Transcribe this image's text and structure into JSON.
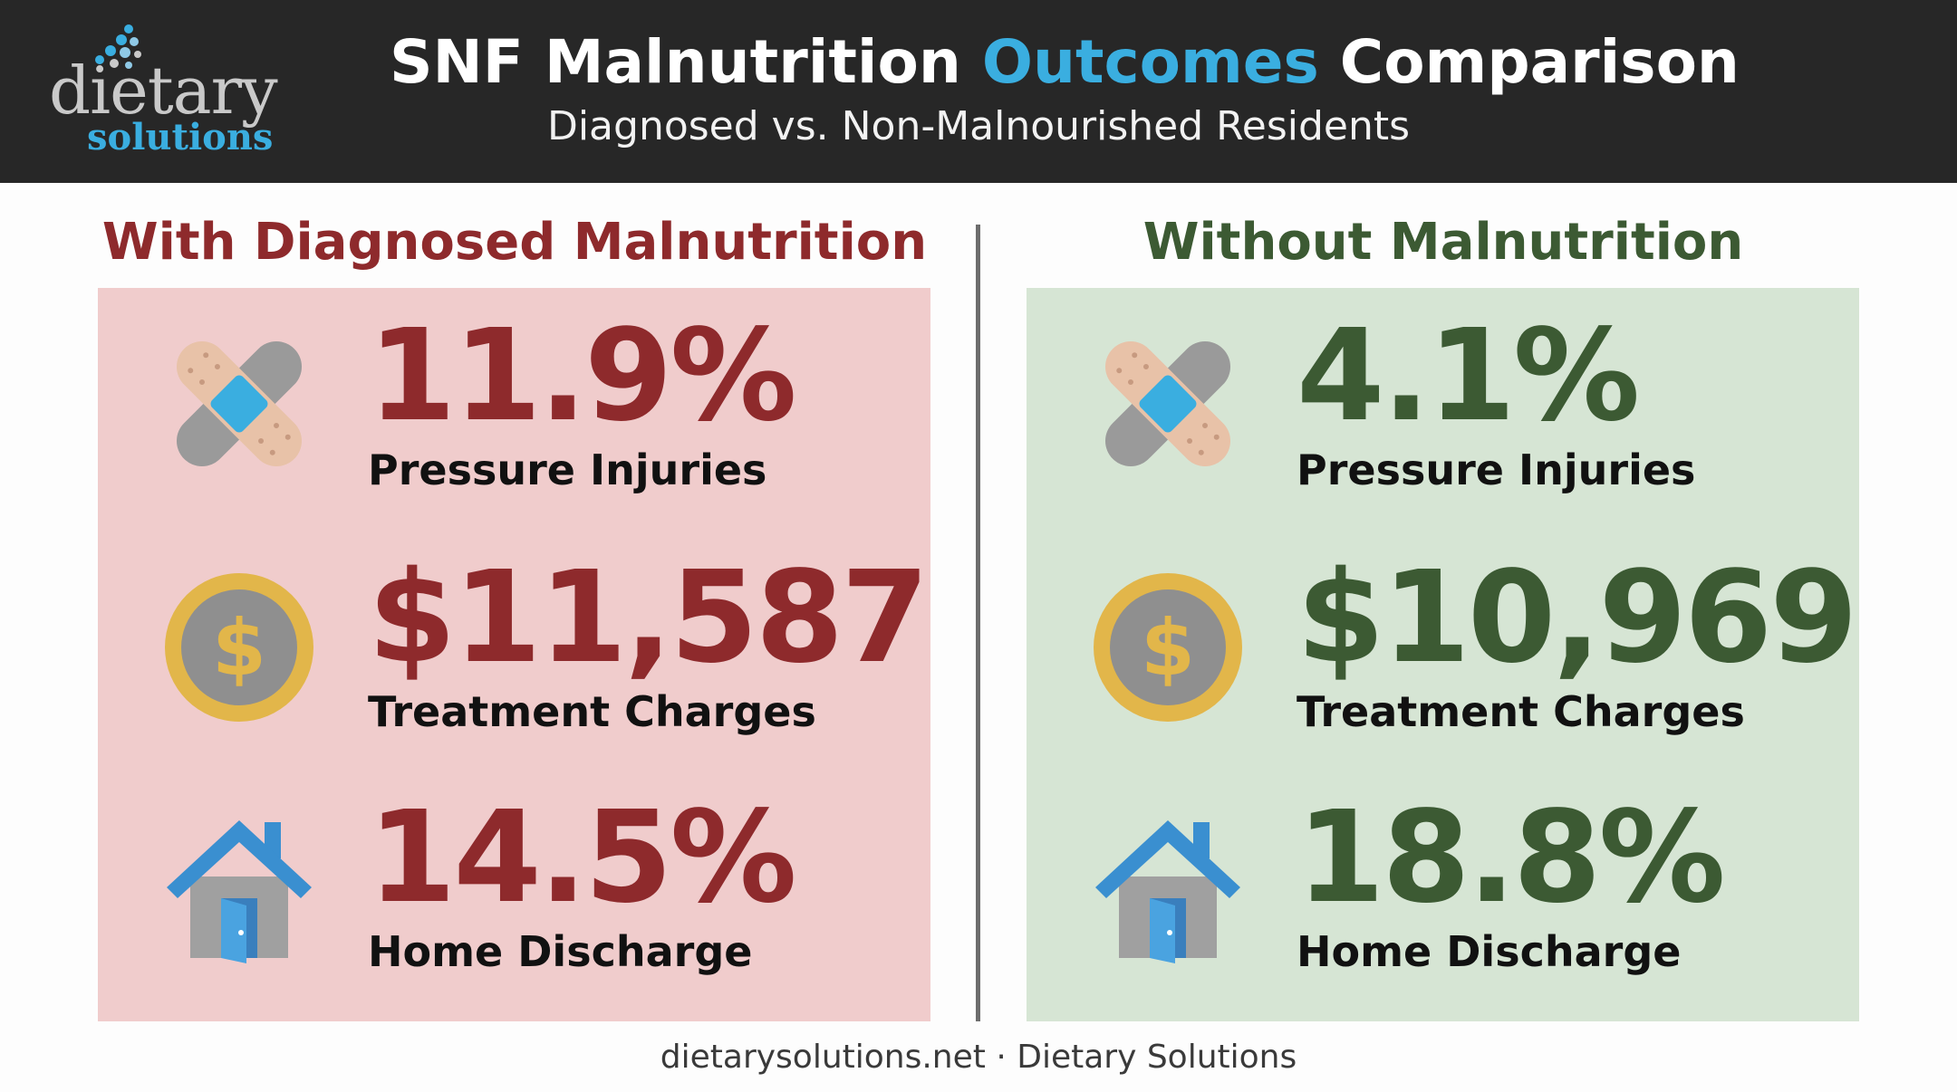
{
  "header": {
    "logo": {
      "word": "dietary",
      "sub": "solutions"
    },
    "title_part1": "SNF Malnutrition ",
    "title_accent": "Outcomes",
    "title_part2": " Comparison",
    "subtitle": "Diagnosed vs. Non-Malnourished Residents"
  },
  "colors": {
    "header_bg": "#272727",
    "accent_blue": "#3aaee0",
    "malnutrition_red": "#8e2a2c",
    "malnutrition_panel": "#f0cccc",
    "healthy_green": "#3c5a33",
    "healthy_panel": "#d6e5d4"
  },
  "left": {
    "heading": "With Diagnosed Malnutrition",
    "metrics": [
      {
        "icon": "bandage-icon",
        "value": "11.9%",
        "label": "Pressure Injuries"
      },
      {
        "icon": "dollar-coin-icon",
        "value": "$11,587",
        "label": "Treatment Charges"
      },
      {
        "icon": "house-icon",
        "value": "14.5%",
        "label": "Home Discharge"
      }
    ]
  },
  "right": {
    "heading": "Without Malnutrition",
    "metrics": [
      {
        "icon": "bandage-icon",
        "value": "4.1%",
        "label": "Pressure Injuries"
      },
      {
        "icon": "dollar-coin-icon",
        "value": "$10,969",
        "label": "Treatment Charges"
      },
      {
        "icon": "house-icon",
        "value": "18.8%",
        "label": "Home Discharge"
      }
    ]
  },
  "footer": {
    "text": "dietarysolutions.net · Dietary Solutions"
  }
}
